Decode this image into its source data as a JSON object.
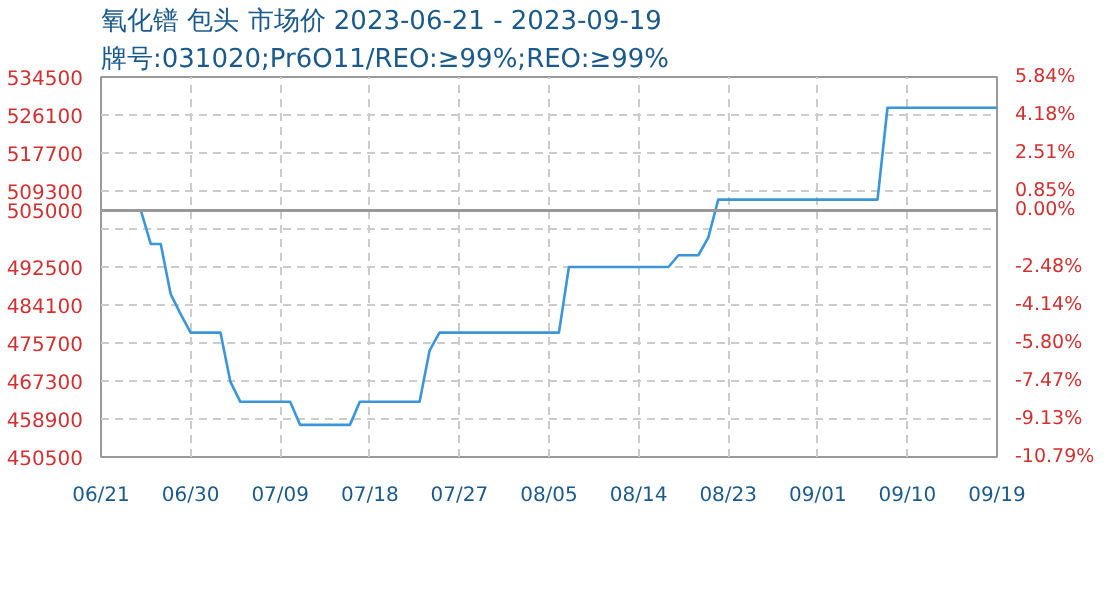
{
  "chart_data": {
    "type": "line",
    "title": "氧化镨 包头 市场价 2023-06-21 - 2023-09-19",
    "subtitle": "牌号:031020;Pr6O11/REO:≥99%;REO:≥99%",
    "x": [
      "2023-06-21",
      "2023-06-25",
      "2023-06-26",
      "2023-06-27",
      "2023-06-28",
      "2023-06-29",
      "2023-06-30",
      "2023-07-03",
      "2023-07-04",
      "2023-07-05",
      "2023-07-10",
      "2023-07-11",
      "2023-07-16",
      "2023-07-17",
      "2023-07-23",
      "2023-07-24",
      "2023-07-25",
      "2023-08-06",
      "2023-08-07",
      "2023-08-17",
      "2023-08-18",
      "2023-08-20",
      "2023-08-21",
      "2023-08-22",
      "2023-09-07",
      "2023-09-08",
      "2023-09-19"
    ],
    "series": [
      {
        "color": "#3a96d8",
        "values": [
          505000,
          505000,
          497600,
          497600,
          486500,
          482100,
          478000,
          478000,
          467100,
          462700,
          462700,
          457600,
          457600,
          462700,
          462700,
          474000,
          478000,
          478000,
          492500,
          492500,
          495100,
          495100,
          499000,
          507400,
          507400,
          527700,
          527700
        ]
      }
    ],
    "xlim": [
      "2023-06-21",
      "2023-09-19"
    ],
    "xticks": [
      {
        "value": "2023-06-21",
        "label": "06/21"
      },
      {
        "value": "2023-06-30",
        "label": "06/30"
      },
      {
        "value": "2023-07-09",
        "label": "07/09"
      },
      {
        "value": "2023-07-18",
        "label": "07/18"
      },
      {
        "value": "2023-07-27",
        "label": "07/27"
      },
      {
        "value": "2023-08-05",
        "label": "08/05"
      },
      {
        "value": "2023-08-14",
        "label": "08/14"
      },
      {
        "value": "2023-08-23",
        "label": "08/23"
      },
      {
        "value": "2023-09-01",
        "label": "09/01"
      },
      {
        "value": "2023-09-10",
        "label": "09/10"
      },
      {
        "value": "2023-09-19",
        "label": "09/19"
      }
    ],
    "ylim": [
      450500,
      534500
    ],
    "yticks": [
      450500,
      458900,
      467300,
      475700,
      484100,
      492500,
      {
        "value": 500900,
        "label": null
      },
      505000,
      509300,
      517700,
      526100,
      534500
    ],
    "y2lim": [
      -10.79,
      5.84
    ],
    "y2ticks": [
      {
        "value": -10.79,
        "label": "-10.79%"
      },
      {
        "value": -9.13,
        "label": "-9.13%"
      },
      {
        "value": -7.47,
        "label": "-7.47%"
      },
      {
        "value": -5.8,
        "label": "-5.80%"
      },
      {
        "value": -4.14,
        "label": "-4.14%"
      },
      {
        "value": -2.48,
        "label": "-2.48%"
      },
      {
        "value": -0.81,
        "label": null
      },
      {
        "value": 0,
        "label": "0.00%"
      },
      {
        "value": 0.85,
        "label": "0.85%"
      },
      {
        "value": 2.51,
        "label": "2.51%"
      },
      {
        "value": 4.18,
        "label": "4.18%"
      },
      {
        "value": 5.84,
        "label": "5.84%"
      }
    ],
    "ref_lines": [
      {
        "axis": "y",
        "value": 505000,
        "color": "#999999",
        "line_style": "solid"
      }
    ],
    "grid": true,
    "line_style": "solid",
    "marker": "none"
  }
}
